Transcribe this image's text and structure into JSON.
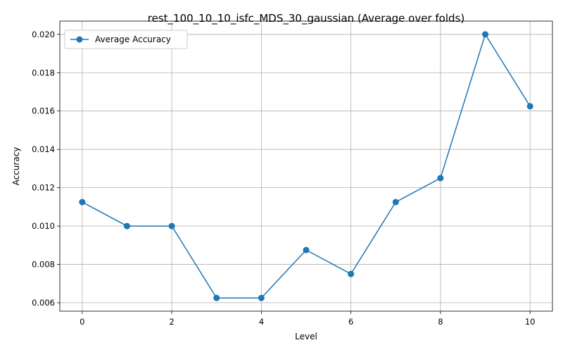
{
  "chart_data": {
    "type": "line",
    "title": "rest_100_10_10_isfc_MDS_30_gaussian (Average over folds)",
    "xlabel": "Level",
    "ylabel": "Accuracy",
    "x": [
      0,
      1,
      2,
      3,
      4,
      5,
      6,
      7,
      8,
      9,
      10
    ],
    "series": [
      {
        "name": "Average Accuracy",
        "color": "#1f77b4",
        "marker": "circle",
        "values": [
          0.01125,
          0.01,
          0.01,
          0.00625,
          0.00625,
          0.00875,
          0.0075,
          0.01125,
          0.0125,
          0.02,
          0.01625
        ]
      }
    ],
    "xlim": [
      -0.5,
      10.5
    ],
    "ylim": [
      0.00556,
      0.02069
    ],
    "xticks": [
      0,
      2,
      4,
      6,
      8,
      10
    ],
    "xtick_labels": [
      "0",
      "2",
      "4",
      "6",
      "8",
      "10"
    ],
    "yticks": [
      0.006,
      0.008,
      0.01,
      0.012,
      0.014,
      0.016,
      0.018,
      0.02
    ],
    "ytick_labels": [
      "0.006",
      "0.008",
      "0.010",
      "0.012",
      "0.014",
      "0.016",
      "0.018",
      "0.020"
    ],
    "grid": true,
    "legend_position": "top-left"
  }
}
